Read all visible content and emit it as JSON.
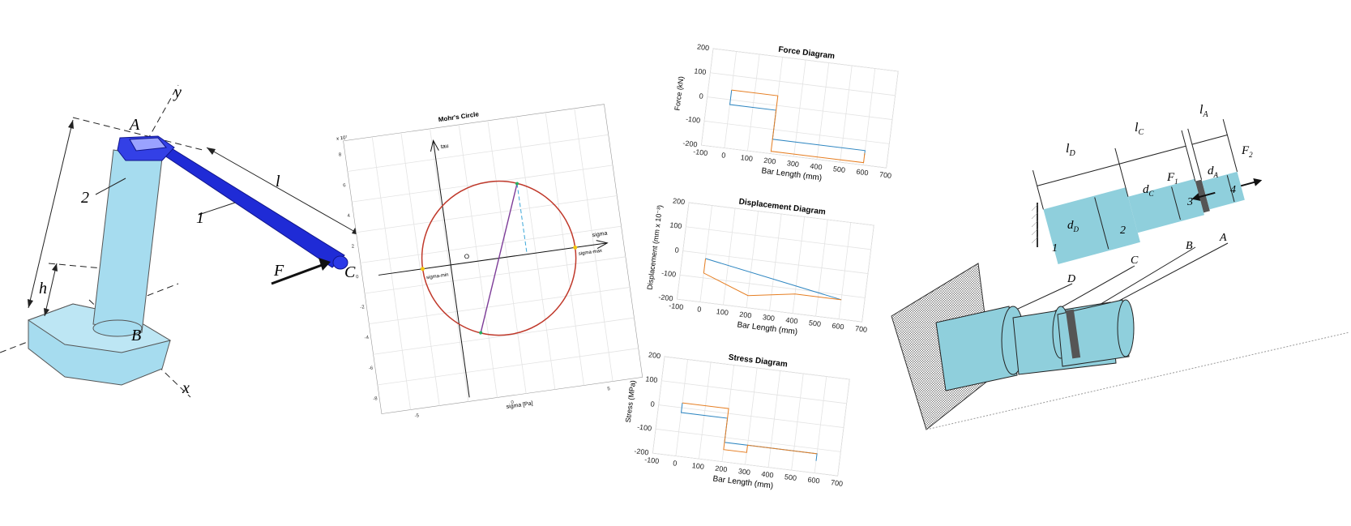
{
  "crank": {
    "labels": {
      "A": "A",
      "B": "B",
      "C": "C",
      "x": "x",
      "y": "y",
      "F": "F",
      "l": "l",
      "h": "h",
      "one": "1",
      "two": "2"
    },
    "colors": {
      "light": "#a6dcef",
      "dark": "#1f2bd6",
      "line": "#222222"
    }
  },
  "mohr": {
    "title": "Mohr's Circle",
    "tau": "tau",
    "sigma": "sigma",
    "xlabel": "sigma [Pa]",
    "origin": "O",
    "sigma_max": "sigma-max",
    "sigma_min": "sigma-min",
    "scale": "x 10⁷",
    "yticks": [
      "8",
      "6",
      "4",
      "2",
      "0",
      "-2",
      "-4",
      "-6",
      "-8"
    ],
    "xticks": [
      "-5",
      "0",
      "5"
    ],
    "colors": {
      "circle": "#c0392b",
      "diameter": "#7d3c98",
      "dashed": "#3aa6d8",
      "point": "#f1c40f"
    }
  },
  "chart_data": [
    {
      "type": "line",
      "title": "Force Diagram",
      "xlabel": "Bar Length (mm)",
      "ylabel": "Force (kN)",
      "xlim": [
        -100,
        700
      ],
      "ylim": [
        -200,
        200
      ],
      "xticks": [
        "-100",
        "0",
        "100",
        "200",
        "300",
        "400",
        "500",
        "600",
        "700"
      ],
      "yticks": [
        "200",
        "100",
        "0",
        "-100",
        "-200"
      ],
      "grid": true,
      "series": [
        {
          "values": [
            [
              0,
              40
            ],
            [
              0,
              -20
            ],
            [
              200,
              -20
            ],
            [
              200,
              -140
            ],
            [
              600,
              -140
            ],
            [
              600,
              -160
            ]
          ],
          "color": "#2e86c1"
        },
        {
          "values": [
            [
              0,
              40
            ],
            [
              200,
              40
            ],
            [
              200,
              -190
            ],
            [
              600,
              -190
            ],
            [
              600,
              -150
            ]
          ],
          "color": "#e67e22"
        }
      ]
    },
    {
      "type": "line",
      "title": "Displacement Diagram",
      "xlabel": "Bar Length (mm)",
      "ylabel": "Displacement (mm x 10⁻³)",
      "xlim": [
        -100,
        700
      ],
      "ylim": [
        -200,
        200
      ],
      "xticks": [
        "-100",
        "0",
        "100",
        "200",
        "300",
        "400",
        "500",
        "600",
        "700"
      ],
      "yticks": [
        "200",
        "100",
        "0",
        "-100",
        "-200"
      ],
      "grid": true,
      "series": [
        {
          "values": [
            [
              0,
              -20
            ],
            [
              600,
              -120
            ]
          ],
          "color": "#2e86c1"
        },
        {
          "values": [
            [
              0,
              -20
            ],
            [
              0,
              -80
            ],
            [
              200,
              -150
            ],
            [
              400,
              -120
            ],
            [
              600,
              -120
            ]
          ],
          "color": "#e67e22"
        }
      ]
    },
    {
      "type": "line",
      "title": "Stress Diagram",
      "xlabel": "Bar Length (mm)",
      "ylabel": "Stress (MPa)",
      "xlim": [
        -100,
        700
      ],
      "ylim": [
        -200,
        200
      ],
      "xticks": [
        "-100",
        "0",
        "100",
        "200",
        "300",
        "400",
        "500",
        "600",
        "700"
      ],
      "yticks": [
        "200",
        "100",
        "0",
        "-100",
        "-200"
      ],
      "grid": true,
      "series": [
        {
          "values": [
            [
              0,
              20
            ],
            [
              0,
              -20
            ],
            [
              200,
              -20
            ],
            [
              200,
              -120
            ],
            [
              600,
              -120
            ],
            [
              600,
              -150
            ]
          ],
          "color": "#2e86c1"
        },
        {
          "values": [
            [
              0,
              20
            ],
            [
              200,
              20
            ],
            [
              200,
              -150
            ],
            [
              300,
              -150
            ],
            [
              300,
              -120
            ],
            [
              600,
              -120
            ]
          ],
          "color": "#e67e22"
        }
      ]
    }
  ],
  "bar": {
    "labels": {
      "lD": "l",
      "lD_sub": "D",
      "lC": "l",
      "lC_sub": "C",
      "lA": "l",
      "lA_sub": "A",
      "dD": "d",
      "dD_sub": "D",
      "dC": "d",
      "dC_sub": "C",
      "dA": "d",
      "dA_sub": "A",
      "F1": "F",
      "F1_sub": "1",
      "F2": "F",
      "F2_sub": "2",
      "n1": "1",
      "n2": "2",
      "n3": "3",
      "n4": "4",
      "D": "D",
      "C": "C",
      "B": "B",
      "A": "A"
    },
    "colors": {
      "fill": "#8fcfdc",
      "ring": "#555555"
    }
  }
}
